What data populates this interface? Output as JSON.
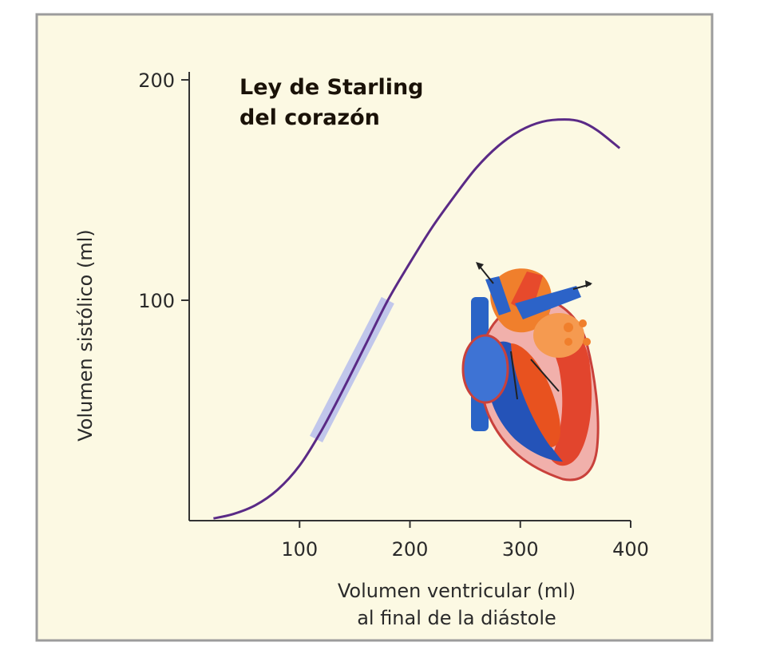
{
  "chart_data": {
    "type": "line",
    "title_lines": [
      "Ley de Starling",
      "del corazón"
    ],
    "xlabel_lines": [
      "Volumen ventricular (ml)",
      "al final de la diástole"
    ],
    "ylabel": "Volumen sistólico (ml)",
    "xlim": [
      0,
      400
    ],
    "ylim": [
      0,
      200
    ],
    "x_ticks": [
      100,
      200,
      300,
      400
    ],
    "x_tick_labels": [
      "100",
      "200",
      "300",
      "400"
    ],
    "y_ticks": [
      100,
      200
    ],
    "y_tick_labels": [
      "100",
      "200"
    ],
    "grid": false,
    "legend": "none",
    "series": [
      {
        "x": [
          22,
          40,
          60,
          80,
          100,
          120,
          140,
          160,
          180,
          200,
          220,
          240,
          260,
          280,
          300,
          320,
          340,
          355,
          370,
          390
        ],
        "y": [
          1,
          3,
          7,
          14,
          25,
          41,
          60,
          80,
          100,
          117,
          133,
          147,
          160,
          170,
          177,
          181,
          182,
          181,
          177,
          169
        ],
        "color": "#5a2a86"
      }
    ],
    "highlight_band": {
      "x": [
        115,
        180
      ],
      "color": "#aeb6ee"
    },
    "illustration": "heart-icon"
  },
  "colors": {
    "background": "#fcf9e3",
    "frame": "#9c9c9c",
    "axis": "#333333",
    "line": "#5a2a86"
  }
}
